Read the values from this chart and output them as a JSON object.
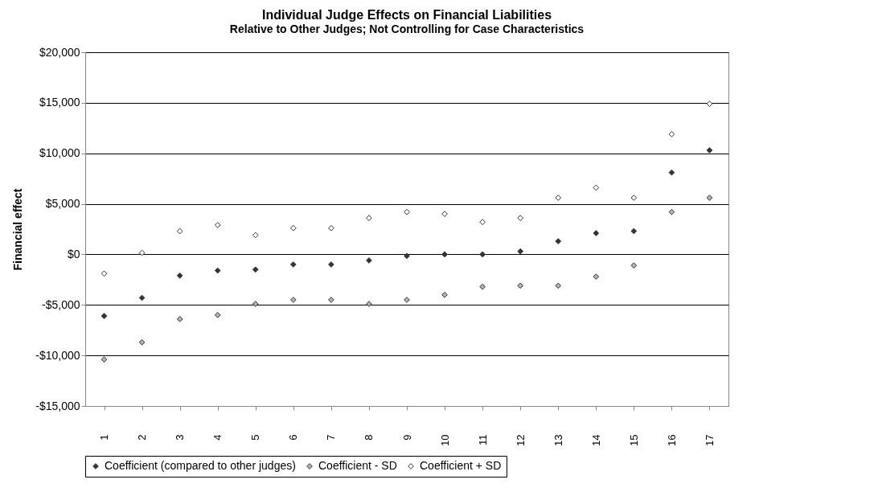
{
  "chart_data": {
    "type": "scatter",
    "title": "Individual Judge Effects on Financial Liabilities",
    "subtitle": "Relative to Other Judges; Not Controlling for Case Characteristics",
    "ylabel": "Financial effect",
    "categories": [
      "1",
      "2",
      "3",
      "4",
      "5",
      "6",
      "7",
      "8",
      "9",
      "10",
      "11",
      "12",
      "13",
      "14",
      "15",
      "16",
      "17"
    ],
    "series": [
      {
        "name": "Coefficient (compared to other judges)",
        "color": "#333333",
        "values": [
          -6100,
          -4300,
          -2100,
          -1600,
          -1500,
          -1000,
          -1000,
          -600,
          -150,
          0,
          0,
          300,
          1300,
          2100,
          2300,
          8100,
          10300
        ]
      },
      {
        "name": "Coefficient - SD",
        "color": "#b3b3b3",
        "values": [
          -10400,
          -8700,
          -6400,
          -6000,
          -4900,
          -4500,
          -4500,
          -4900,
          -4500,
          -4000,
          -3200,
          -3100,
          -3100,
          -2200,
          -1100,
          4200,
          5600
        ]
      },
      {
        "name": "Coefficient + SD",
        "color": "#ffffff",
        "values": [
          -1900,
          150,
          2300,
          2900,
          1900,
          2600,
          2600,
          3600,
          4200,
          4000,
          3200,
          3600,
          5600,
          6600,
          5600,
          11900,
          14900
        ]
      }
    ],
    "ylim": [
      -15000,
      20000
    ],
    "yticks": [
      {
        "value": -15000,
        "label": "-$15,000"
      },
      {
        "value": -10000,
        "label": "-$10,000"
      },
      {
        "value": -5000,
        "label": "-$5,000"
      },
      {
        "value": 0,
        "label": "$0"
      },
      {
        "value": 5000,
        "label": "$5,000"
      },
      {
        "value": 10000,
        "label": "$10,000"
      },
      {
        "value": 15000,
        "label": "$15,000"
      },
      {
        "value": 20000,
        "label": "$20,000"
      }
    ],
    "grid": "y",
    "legend": "bottom",
    "marker": "diamond"
  }
}
